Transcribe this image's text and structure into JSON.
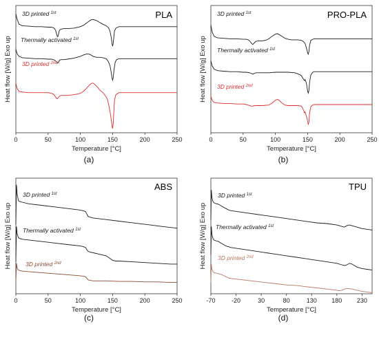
{
  "figure": {
    "captions": [
      "(a)",
      "(b)",
      "(c)",
      "(d)"
    ],
    "series_colors": {
      "first": "#1a1a1a",
      "second": "#e02b2b",
      "second_tpu": "#b8775f"
    }
  },
  "chart_data": [
    {
      "type": "line",
      "title": "PLA",
      "xlabel": "Temperature [°C]",
      "ylabel": "Heat flow [W/g] Exo up",
      "xlim": [
        0,
        250
      ],
      "x_ticks": [
        0,
        50,
        100,
        150,
        200,
        250
      ],
      "grid": false,
      "series": [
        {
          "name": "3D printed",
          "sup": "1st",
          "color": "#1a1a1a",
          "x": [
            0,
            2,
            5,
            10,
            20,
            30,
            40,
            50,
            55,
            58,
            60,
            62,
            63,
            64,
            65,
            66,
            67,
            68,
            70,
            75,
            80,
            90,
            100,
            105,
            110,
            115,
            118,
            120,
            125,
            130,
            135,
            140,
            142,
            144,
            146,
            148,
            149,
            150,
            151,
            152,
            153,
            155,
            158,
            160,
            170,
            180,
            200,
            220,
            250
          ],
          "y": [
            0.72,
            0.6,
            0.5,
            0.47,
            0.46,
            0.45,
            0.45,
            0.44,
            0.44,
            0.43,
            0.41,
            0.36,
            0.3,
            0.26,
            0.24,
            0.28,
            0.35,
            0.38,
            0.4,
            0.41,
            0.41,
            0.42,
            0.45,
            0.48,
            0.53,
            0.58,
            0.6,
            0.6,
            0.58,
            0.54,
            0.5,
            0.47,
            0.45,
            0.42,
            0.35,
            0.22,
            0.1,
            0.04,
            0.1,
            0.25,
            0.36,
            0.42,
            0.44,
            0.45,
            0.45,
            0.45,
            0.45,
            0.45,
            0.45
          ]
        },
        {
          "name": "Thermally activated",
          "sup": "1st",
          "color": "#1a1a1a",
          "x": [
            0,
            2,
            5,
            10,
            20,
            30,
            40,
            50,
            55,
            58,
            60,
            62,
            64,
            65,
            66,
            67,
            68,
            70,
            75,
            80,
            90,
            100,
            105,
            110,
            112,
            115,
            120,
            125,
            130,
            135,
            140,
            142,
            144,
            146,
            148,
            149,
            150,
            151,
            152,
            154,
            156,
            160,
            170,
            180,
            200,
            220,
            250
          ],
          "y": [
            0.7,
            0.6,
            0.55,
            0.52,
            0.51,
            0.5,
            0.5,
            0.49,
            0.49,
            0.48,
            0.47,
            0.45,
            0.42,
            0.41,
            0.42,
            0.45,
            0.47,
            0.48,
            0.48,
            0.49,
            0.51,
            0.55,
            0.58,
            0.6,
            0.6,
            0.59,
            0.55,
            0.53,
            0.53,
            0.52,
            0.5,
            0.47,
            0.42,
            0.35,
            0.2,
            0.1,
            0.05,
            0.1,
            0.25,
            0.42,
            0.48,
            0.5,
            0.5,
            0.5,
            0.5,
            0.5,
            0.5
          ]
        },
        {
          "name": "3D printed",
          "sup": "2nd",
          "color": "#e02b2b",
          "x": [
            0,
            2,
            5,
            10,
            20,
            30,
            40,
            50,
            55,
            58,
            60,
            62,
            64,
            66,
            68,
            70,
            75,
            80,
            90,
            100,
            105,
            110,
            115,
            118,
            120,
            125,
            130,
            135,
            140,
            142,
            144,
            146,
            148,
            149,
            150,
            151,
            152,
            153,
            155,
            158,
            160,
            170,
            180,
            200,
            220,
            250
          ],
          "y": [
            0.7,
            0.62,
            0.58,
            0.57,
            0.56,
            0.56,
            0.56,
            0.56,
            0.55,
            0.54,
            0.52,
            0.49,
            0.47,
            0.49,
            0.51,
            0.52,
            0.52,
            0.52,
            0.53,
            0.55,
            0.58,
            0.63,
            0.68,
            0.7,
            0.7,
            0.66,
            0.6,
            0.56,
            0.5,
            0.46,
            0.38,
            0.28,
            0.16,
            0.08,
            0.03,
            0.1,
            0.3,
            0.45,
            0.53,
            0.55,
            0.56,
            0.56,
            0.56,
            0.56,
            0.56,
            0.56
          ]
        }
      ]
    },
    {
      "type": "line",
      "title": "PRO-PLA",
      "xlabel": "Temperature [°C]",
      "ylabel": "Heat flow [W/g] Exo up",
      "xlim": [
        0,
        250
      ],
      "x_ticks": [
        0,
        50,
        100,
        150,
        200,
        250
      ],
      "grid": false,
      "series": [
        {
          "name": "3D printed",
          "sup": "1st",
          "color": "#1a1a1a",
          "x": [
            0,
            2,
            5,
            10,
            20,
            30,
            40,
            50,
            55,
            58,
            60,
            62,
            64,
            65,
            66,
            68,
            70,
            75,
            80,
            85,
            90,
            95,
            100,
            103,
            105,
            110,
            115,
            120,
            125,
            130,
            135,
            140,
            143,
            146,
            148,
            150,
            151,
            152,
            153,
            155,
            158,
            160,
            170,
            180,
            200,
            220,
            250
          ],
          "y": [
            0.72,
            0.58,
            0.5,
            0.47,
            0.46,
            0.45,
            0.45,
            0.44,
            0.44,
            0.43,
            0.41,
            0.38,
            0.35,
            0.34,
            0.35,
            0.38,
            0.4,
            0.41,
            0.41,
            0.42,
            0.45,
            0.5,
            0.54,
            0.55,
            0.54,
            0.5,
            0.46,
            0.44,
            0.43,
            0.43,
            0.43,
            0.42,
            0.4,
            0.36,
            0.28,
            0.18,
            0.15,
            0.2,
            0.32,
            0.42,
            0.44,
            0.45,
            0.45,
            0.45,
            0.45,
            0.45,
            0.45
          ]
        },
        {
          "name": "Thermally activated",
          "sup": "1st",
          "color": "#1a1a1a",
          "x": [
            0,
            2,
            5,
            10,
            20,
            30,
            40,
            50,
            55,
            60,
            62,
            64,
            65,
            66,
            68,
            70,
            75,
            80,
            90,
            100,
            110,
            120,
            130,
            135,
            140,
            143,
            145,
            146,
            147,
            148,
            149,
            150,
            151,
            152,
            153,
            155,
            158,
            160,
            170,
            180,
            200,
            220,
            250
          ],
          "y": [
            0.72,
            0.62,
            0.56,
            0.53,
            0.52,
            0.51,
            0.51,
            0.5,
            0.5,
            0.49,
            0.48,
            0.47,
            0.46,
            0.47,
            0.48,
            0.49,
            0.49,
            0.49,
            0.49,
            0.5,
            0.5,
            0.5,
            0.49,
            0.47,
            0.44,
            0.38,
            0.34,
            0.36,
            0.33,
            0.3,
            0.22,
            0.14,
            0.1,
            0.15,
            0.3,
            0.45,
            0.5,
            0.51,
            0.51,
            0.51,
            0.51,
            0.51,
            0.51
          ]
        },
        {
          "name": "3D printed",
          "sup": "2nd",
          "color": "#e02b2b",
          "x": [
            0,
            2,
            5,
            10,
            20,
            30,
            40,
            50,
            55,
            58,
            60,
            62,
            64,
            66,
            68,
            70,
            75,
            80,
            90,
            95,
            100,
            103,
            106,
            110,
            115,
            120,
            125,
            130,
            135,
            140,
            142,
            144,
            145,
            146,
            147,
            148,
            149,
            150,
            151,
            152,
            153,
            155,
            158,
            160,
            170,
            180,
            200,
            220,
            250
          ],
          "y": [
            0.7,
            0.62,
            0.58,
            0.57,
            0.56,
            0.56,
            0.55,
            0.55,
            0.54,
            0.53,
            0.52,
            0.51,
            0.51,
            0.51,
            0.52,
            0.52,
            0.52,
            0.52,
            0.53,
            0.57,
            0.62,
            0.64,
            0.62,
            0.57,
            0.53,
            0.52,
            0.52,
            0.52,
            0.52,
            0.51,
            0.48,
            0.42,
            0.38,
            0.4,
            0.36,
            0.32,
            0.28,
            0.22,
            0.16,
            0.2,
            0.38,
            0.5,
            0.53,
            0.54,
            0.54,
            0.54,
            0.54,
            0.54,
            0.54
          ]
        }
      ]
    },
    {
      "type": "line",
      "title": "ABS",
      "xlabel": "Temperature [°C]",
      "ylabel": "Heat flow [W/g] Exo up",
      "xlim": [
        0,
        250
      ],
      "x_ticks": [
        0,
        50,
        100,
        150,
        200,
        250
      ],
      "grid": false,
      "series": [
        {
          "name": "3D printed",
          "sup": "1st",
          "color": "#1a1a1a",
          "x": [
            0,
            1,
            2,
            4,
            6,
            10,
            20,
            40,
            60,
            80,
            100,
            105,
            108,
            110,
            112,
            115,
            120,
            140,
            160,
            180,
            200,
            220,
            240,
            250
          ],
          "y": [
            0.2,
            0.7,
            0.58,
            0.5,
            0.49,
            0.48,
            0.46,
            0.44,
            0.42,
            0.4,
            0.38,
            0.37,
            0.36,
            0.33,
            0.3,
            0.29,
            0.28,
            0.26,
            0.24,
            0.22,
            0.2,
            0.18,
            0.16,
            0.15
          ]
        },
        {
          "name": "Thermally activated",
          "sup": "1st",
          "color": "#1a1a1a",
          "x": [
            0,
            1,
            2,
            4,
            6,
            10,
            20,
            40,
            60,
            80,
            100,
            105,
            108,
            110,
            112,
            115,
            120,
            130,
            140,
            145,
            150,
            155,
            160,
            180,
            200,
            220,
            240,
            250
          ],
          "y": [
            0.15,
            0.62,
            0.52,
            0.47,
            0.46,
            0.45,
            0.44,
            0.42,
            0.4,
            0.38,
            0.36,
            0.35,
            0.34,
            0.31,
            0.29,
            0.28,
            0.27,
            0.25,
            0.23,
            0.2,
            0.17,
            0.16,
            0.16,
            0.15,
            0.14,
            0.13,
            0.12,
            0.12
          ]
        },
        {
          "name": "3D printed",
          "sup": "2nd",
          "color": "#8c4a35",
          "x": [
            0,
            1,
            2,
            4,
            6,
            10,
            20,
            40,
            60,
            80,
            100,
            105,
            108,
            110,
            112,
            115,
            120,
            140,
            160,
            180,
            200,
            220,
            240,
            250
          ],
          "y": [
            0.2,
            0.55,
            0.46,
            0.42,
            0.41,
            0.4,
            0.39,
            0.37,
            0.35,
            0.33,
            0.31,
            0.3,
            0.29,
            0.26,
            0.23,
            0.22,
            0.21,
            0.21,
            0.2,
            0.2,
            0.19,
            0.19,
            0.18,
            0.18
          ]
        }
      ]
    },
    {
      "type": "line",
      "title": "TPU",
      "xlabel": "Temperature [°C]",
      "ylabel": "Heat flow [W/g] Exo up",
      "xlim": [
        -70,
        250
      ],
      "x_ticks": [
        -70,
        -20,
        30,
        80,
        130,
        180,
        230
      ],
      "grid": false,
      "series": [
        {
          "name": "3D printed",
          "sup": "1st",
          "color": "#1a1a1a",
          "x": [
            -70,
            -69,
            -68,
            -66,
            -64,
            -60,
            -55,
            -50,
            -45,
            -40,
            -35,
            -30,
            -20,
            0,
            20,
            40,
            60,
            80,
            100,
            120,
            140,
            160,
            170,
            180,
            185,
            190,
            195,
            200,
            205,
            210,
            220,
            230,
            240,
            250
          ],
          "y": [
            0.3,
            0.72,
            0.62,
            0.56,
            0.54,
            0.53,
            0.52,
            0.5,
            0.48,
            0.46,
            0.44,
            0.43,
            0.42,
            0.4,
            0.38,
            0.36,
            0.34,
            0.32,
            0.3,
            0.28,
            0.26,
            0.25,
            0.24,
            0.23,
            0.22,
            0.21,
            0.2,
            0.22,
            0.23,
            0.22,
            0.2,
            0.18,
            0.17,
            0.16
          ]
        },
        {
          "name": "Thermally activated",
          "sup": "1st",
          "color": "#1a1a1a",
          "x": [
            -70,
            -69,
            -68,
            -66,
            -64,
            -60,
            -55,
            -50,
            -45,
            -40,
            -35,
            -30,
            -20,
            0,
            20,
            40,
            60,
            80,
            100,
            120,
            140,
            160,
            180,
            185,
            190,
            195,
            200,
            205,
            210,
            215,
            220,
            230,
            240,
            250
          ],
          "y": [
            0.25,
            0.62,
            0.52,
            0.46,
            0.44,
            0.43,
            0.42,
            0.4,
            0.38,
            0.36,
            0.35,
            0.34,
            0.33,
            0.31,
            0.29,
            0.27,
            0.25,
            0.23,
            0.21,
            0.19,
            0.17,
            0.15,
            0.13,
            0.12,
            0.11,
            0.1,
            0.11,
            0.13,
            0.12,
            0.1,
            0.08,
            0.06,
            0.05,
            0.04
          ]
        },
        {
          "name": "3D printed",
          "sup": "2nd",
          "color": "#b8775f",
          "x": [
            -70,
            -69,
            -68,
            -66,
            -64,
            -60,
            -55,
            -50,
            -45,
            -40,
            -35,
            -30,
            -20,
            0,
            20,
            40,
            60,
            80,
            100,
            120,
            140,
            160,
            180,
            185,
            190,
            195,
            200,
            210,
            220,
            230,
            240,
            250
          ],
          "y": [
            0.2,
            0.5,
            0.42,
            0.38,
            0.36,
            0.35,
            0.34,
            0.33,
            0.31,
            0.29,
            0.27,
            0.26,
            0.25,
            0.23,
            0.21,
            0.19,
            0.17,
            0.15,
            0.14,
            0.12,
            0.1,
            0.08,
            0.06,
            0.05,
            0.06,
            0.08,
            0.09,
            0.08,
            0.06,
            0.04,
            0.03,
            0.02
          ]
        }
      ]
    }
  ]
}
